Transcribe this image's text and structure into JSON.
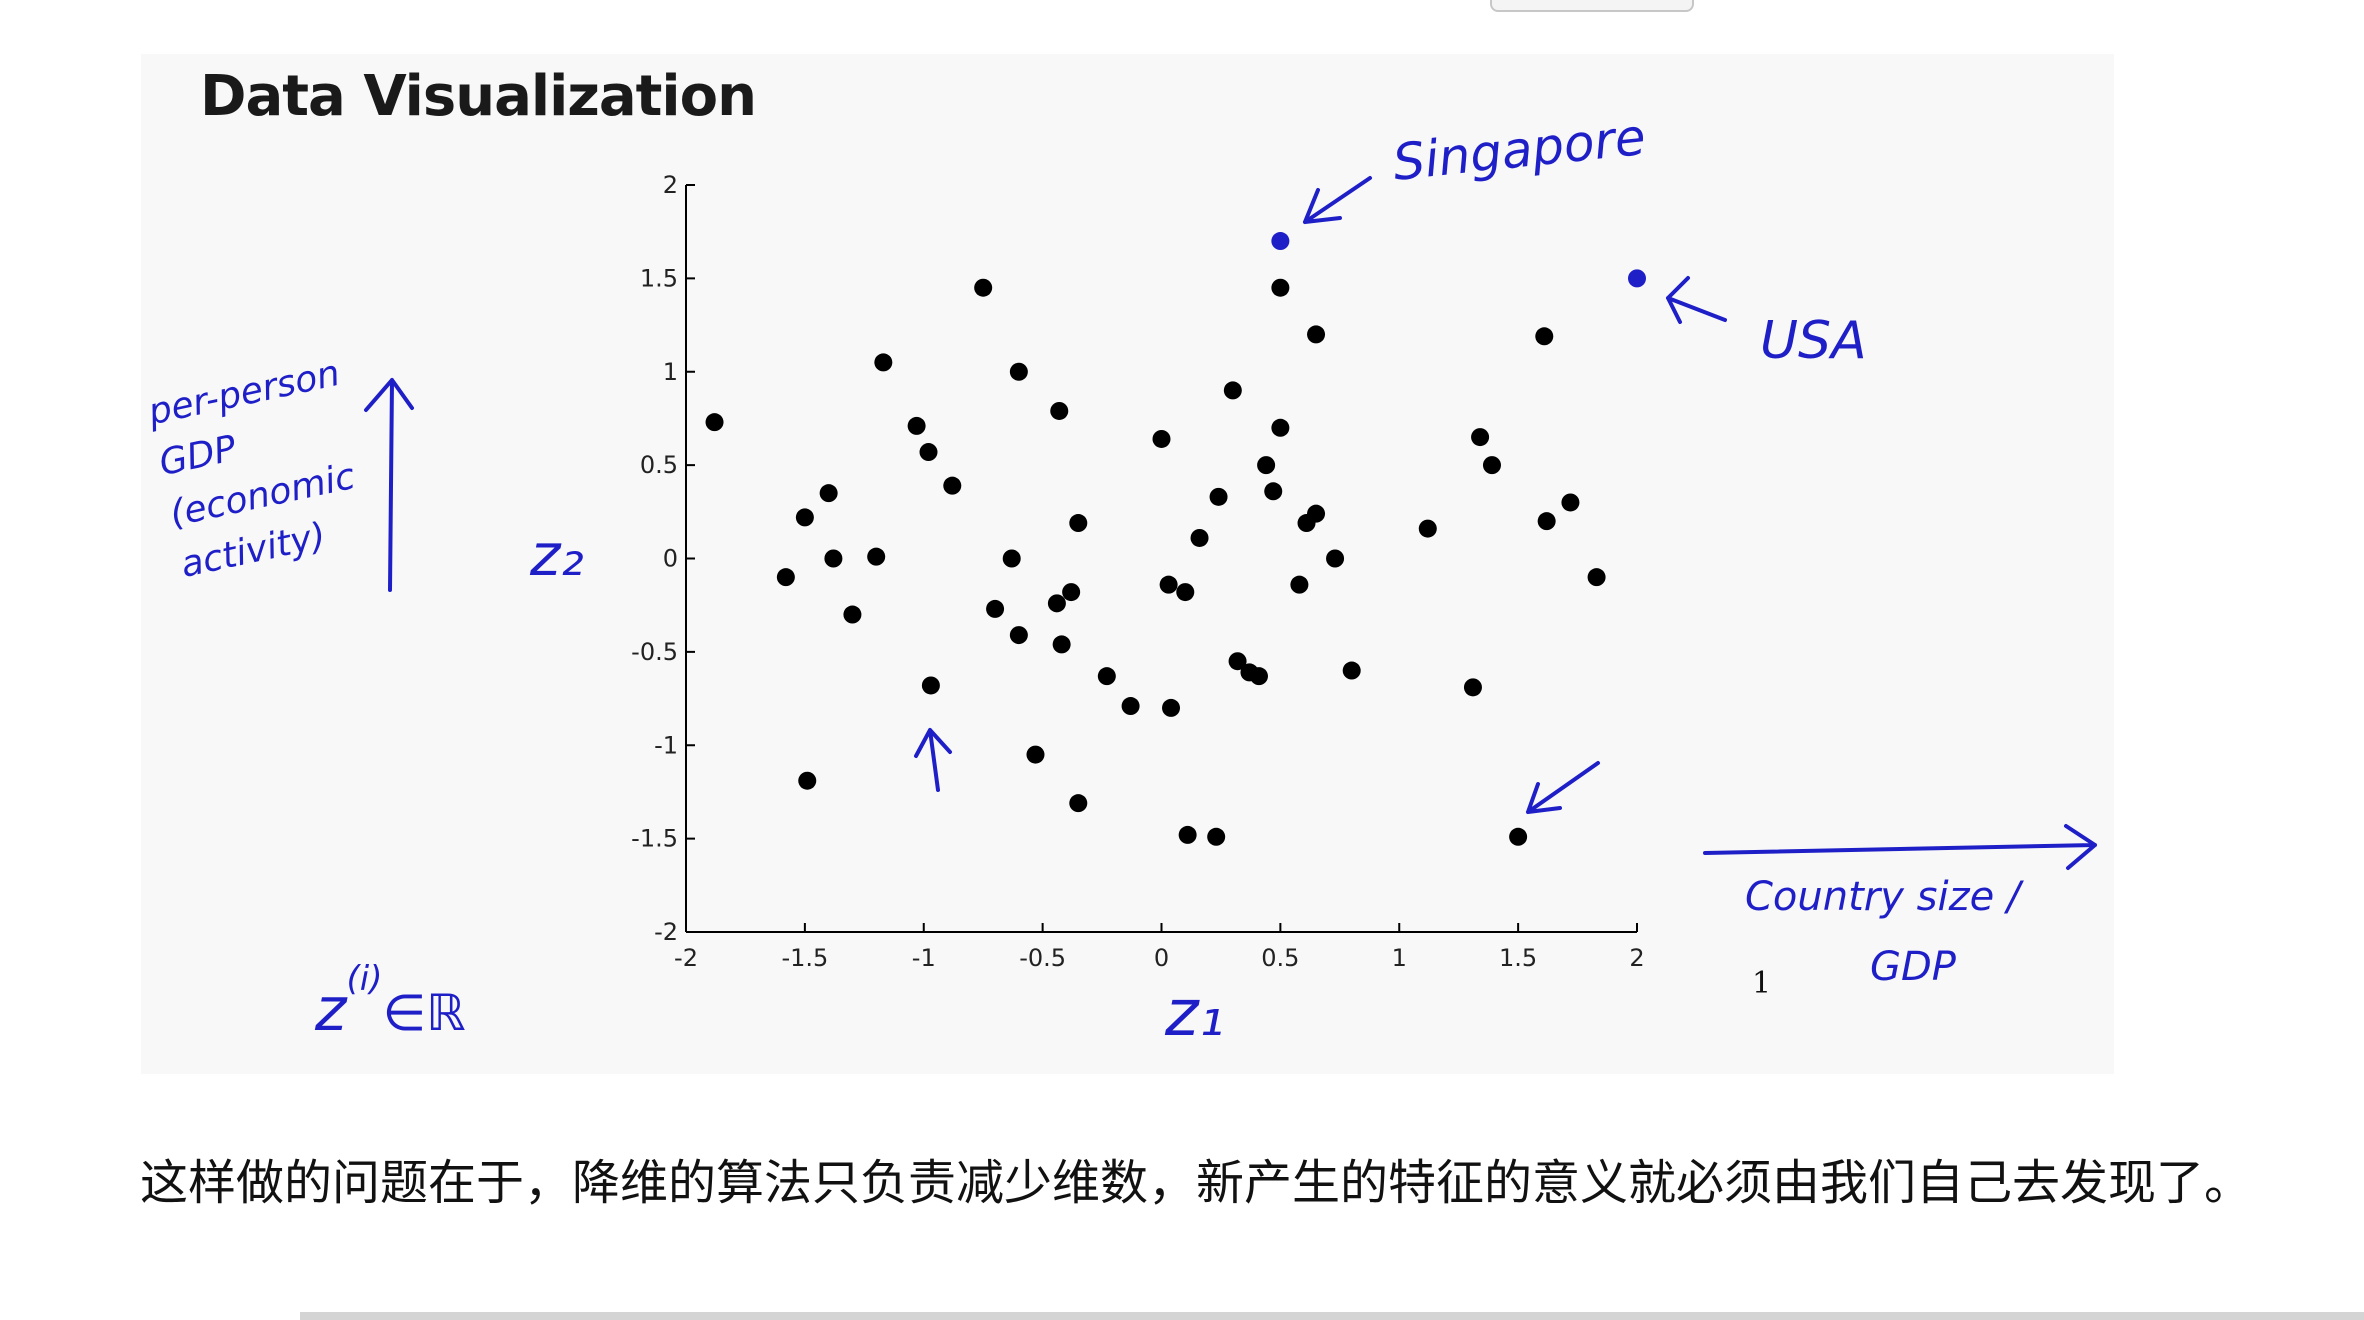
{
  "slide": {
    "title": "Data Visualization"
  },
  "chart_data": {
    "type": "scatter",
    "title": "Data Visualization",
    "xlabel": "z₁",
    "ylabel": "z₂",
    "xlim": [
      -2,
      2
    ],
    "ylim": [
      -2,
      2
    ],
    "xticks": [
      -2,
      -1.5,
      -1,
      -0.5,
      0,
      0.5,
      1,
      1.5,
      2
    ],
    "yticks": [
      -2,
      -1.5,
      -1,
      -0.5,
      0,
      0.5,
      1,
      1.5,
      2
    ],
    "xtick_labels": [
      "-2",
      "-1.5",
      "-1",
      "-0.5",
      "0",
      "0.5",
      "1",
      "1.5",
      "2"
    ],
    "ytick_labels": [
      "-2",
      "-1.5",
      "-1",
      "-0.5",
      "0",
      "0.5",
      "1",
      "1.5",
      "2"
    ],
    "grid": false,
    "series": [
      {
        "color": "#000000",
        "points": [
          [
            -1.88,
            0.73
          ],
          [
            -1.17,
            1.05
          ],
          [
            -0.75,
            1.45
          ],
          [
            -0.6,
            1.0
          ],
          [
            -0.43,
            0.79
          ],
          [
            -1.03,
            0.71
          ],
          [
            -0.98,
            0.57
          ],
          [
            -0.88,
            0.39
          ],
          [
            -1.4,
            0.35
          ],
          [
            -1.5,
            0.22
          ],
          [
            -1.38,
            0.0
          ],
          [
            -1.2,
            0.01
          ],
          [
            -1.58,
            -0.1
          ],
          [
            -1.3,
            -0.3
          ],
          [
            -0.63,
            0.0
          ],
          [
            -0.35,
            0.19
          ],
          [
            -0.38,
            -0.18
          ],
          [
            -0.44,
            -0.24
          ],
          [
            -0.7,
            -0.27
          ],
          [
            -0.6,
            -0.41
          ],
          [
            -0.42,
            -0.46
          ],
          [
            -0.23,
            -0.63
          ],
          [
            -0.13,
            -0.79
          ],
          [
            -0.97,
            -0.68
          ],
          [
            -0.53,
            -1.05
          ],
          [
            -0.35,
            -1.31
          ],
          [
            -1.49,
            -1.19
          ],
          [
            0.0,
            0.64
          ],
          [
            0.3,
            0.9
          ],
          [
            0.5,
            0.7
          ],
          [
            0.44,
            0.5
          ],
          [
            0.24,
            0.33
          ],
          [
            0.47,
            0.36
          ],
          [
            0.16,
            0.11
          ],
          [
            0.61,
            0.19
          ],
          [
            0.65,
            0.24
          ],
          [
            0.73,
            0.0
          ],
          [
            0.58,
            -0.14
          ],
          [
            0.03,
            -0.14
          ],
          [
            0.1,
            -0.18
          ],
          [
            0.32,
            -0.55
          ],
          [
            0.37,
            -0.61
          ],
          [
            0.41,
            -0.63
          ],
          [
            0.8,
            -0.6
          ],
          [
            0.04,
            -0.8
          ],
          [
            0.11,
            -1.48
          ],
          [
            0.23,
            -1.49
          ],
          [
            0.5,
            1.45
          ],
          [
            0.65,
            1.2
          ],
          [
            1.12,
            0.16
          ],
          [
            1.34,
            0.65
          ],
          [
            1.39,
            0.5
          ],
          [
            1.61,
            1.19
          ],
          [
            1.62,
            0.2
          ],
          [
            1.72,
            0.3
          ],
          [
            1.83,
            -0.1
          ],
          [
            1.31,
            -0.69
          ],
          [
            1.5,
            -1.49
          ]
        ]
      },
      {
        "color": "#1f1fc8",
        "points": [
          [
            0.5,
            1.7
          ],
          [
            2.0,
            1.5
          ]
        ]
      }
    ]
  },
  "annotations": {
    "singapore": "Singapore",
    "usa": "USA",
    "y_note_lines": [
      "per-person",
      "GDP",
      "(economic",
      "activity)"
    ],
    "x_note_lines": [
      "Country size /",
      "GDP"
    ],
    "z_label": "z",
    "z_sup": "(i)",
    "z_rest": "∈ℝ",
    "stray_mark": "1"
  },
  "caption": "这样做的问题在于，降维的算法只负责减少维数，新产生的特征的意义就必须由我们自己去发现了。"
}
